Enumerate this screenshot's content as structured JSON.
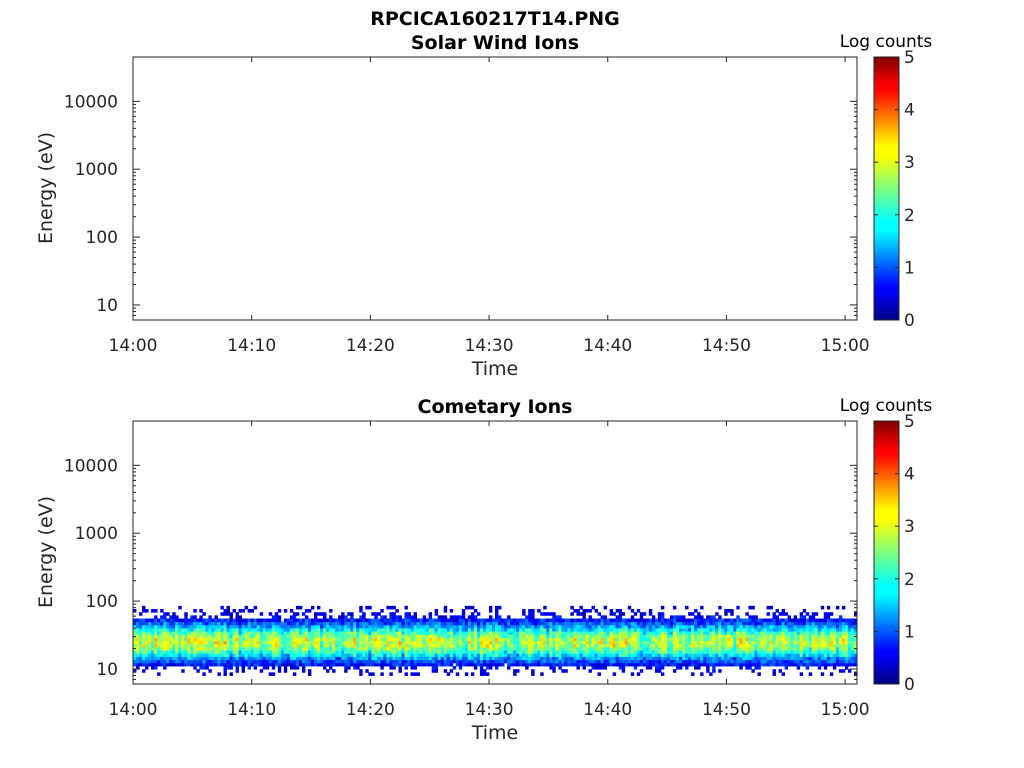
{
  "figure_title": "RPCICA160217T14.PNG",
  "chart_data": [
    {
      "type": "heatmap",
      "title": "Solar Wind Ions",
      "xlabel": "Time",
      "ylabel": "Energy (eV)",
      "x_ticks": [
        "14:00",
        "14:10",
        "14:20",
        "14:30",
        "14:40",
        "14:50",
        "15:00"
      ],
      "x_range": [
        "14:00",
        "15:01"
      ],
      "y_scale": "log",
      "y_ticks": [
        "10",
        "100",
        "1000",
        "10000"
      ],
      "y_range": [
        6,
        45000
      ],
      "colorbar": {
        "label": "Log counts",
        "range": [
          0,
          5
        ],
        "ticks": [
          "0",
          "1",
          "2",
          "3",
          "4",
          "5"
        ],
        "colormap": "jet"
      },
      "band": null
    },
    {
      "type": "heatmap",
      "title": "Cometary Ions",
      "xlabel": "Time",
      "ylabel": "Energy (eV)",
      "x_ticks": [
        "14:00",
        "14:10",
        "14:20",
        "14:30",
        "14:40",
        "14:50",
        "15:00"
      ],
      "x_range": [
        "14:00",
        "15:01"
      ],
      "y_scale": "log",
      "y_ticks": [
        "10",
        "100",
        "1000",
        "10000"
      ],
      "y_range": [
        6,
        45000
      ],
      "colorbar": {
        "label": "Log counts",
        "range": [
          0,
          5
        ],
        "ticks": [
          "0",
          "1",
          "2",
          "3",
          "4",
          "5"
        ],
        "colormap": "jet"
      },
      "band": {
        "energy_min_eV": 10,
        "energy_max_eV": 85,
        "peak_energy_eV": 25,
        "peak_log_counts": 3.0,
        "time_start": "14:00",
        "time_end": "15:01"
      }
    }
  ]
}
